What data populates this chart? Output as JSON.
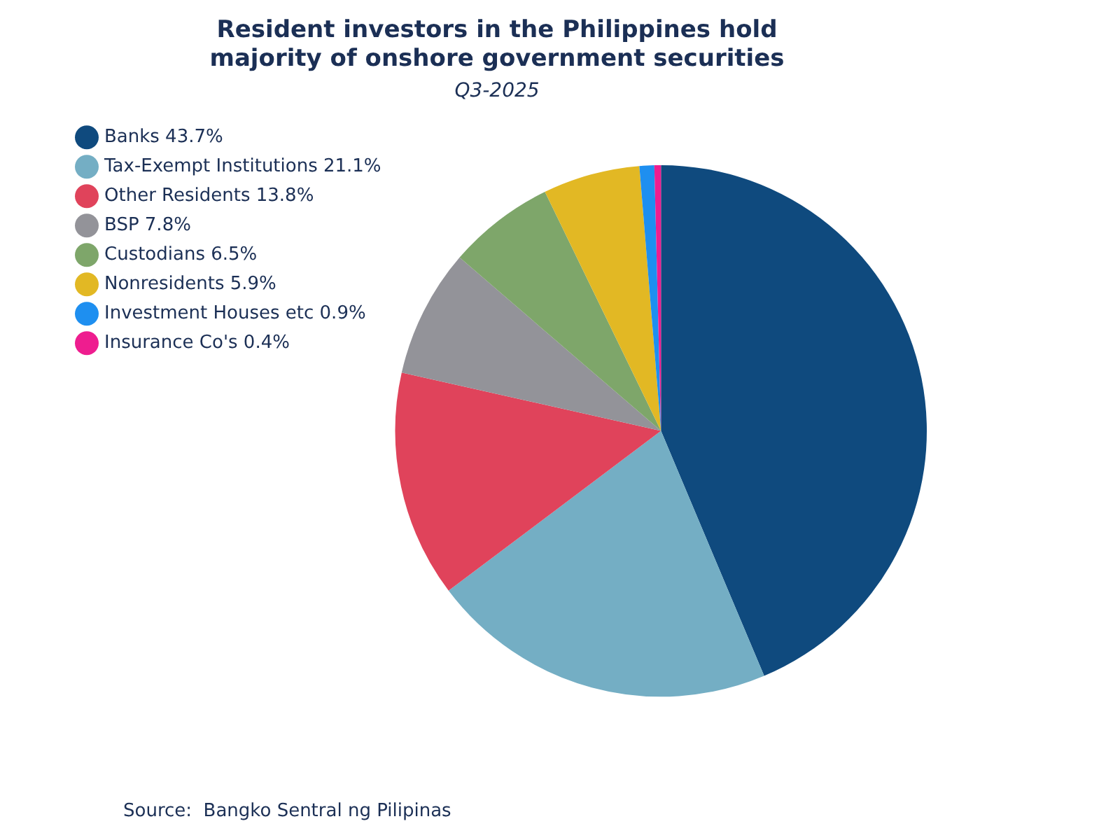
{
  "chart_data": {
    "type": "pie",
    "title": "Resident investors in the Philippines hold\nmajority of onshore government securities",
    "subtitle": "Q3-2025",
    "categories": [
      "Banks 43.7%",
      "Tax-Exempt Institutions 21.1%",
      "Other Residents 13.8%",
      "BSP 7.8%",
      "Custodians 6.5%",
      "Nonresidents 5.9%",
      "Investment Houses etc 0.9%",
      "Insurance Co's 0.4%"
    ],
    "values": [
      43.7,
      21.1,
      13.8,
      7.8,
      6.5,
      5.9,
      0.9,
      0.4
    ],
    "colors": [
      "#0f4a7e",
      "#74aec4",
      "#e0435b",
      "#939399",
      "#7ea66a",
      "#e2b824",
      "#1e8ff0",
      "#ee1d8f"
    ],
    "legend": "top left",
    "annotations": [
      "Source:  Bangko Sentral ng Pilipinas"
    ]
  }
}
